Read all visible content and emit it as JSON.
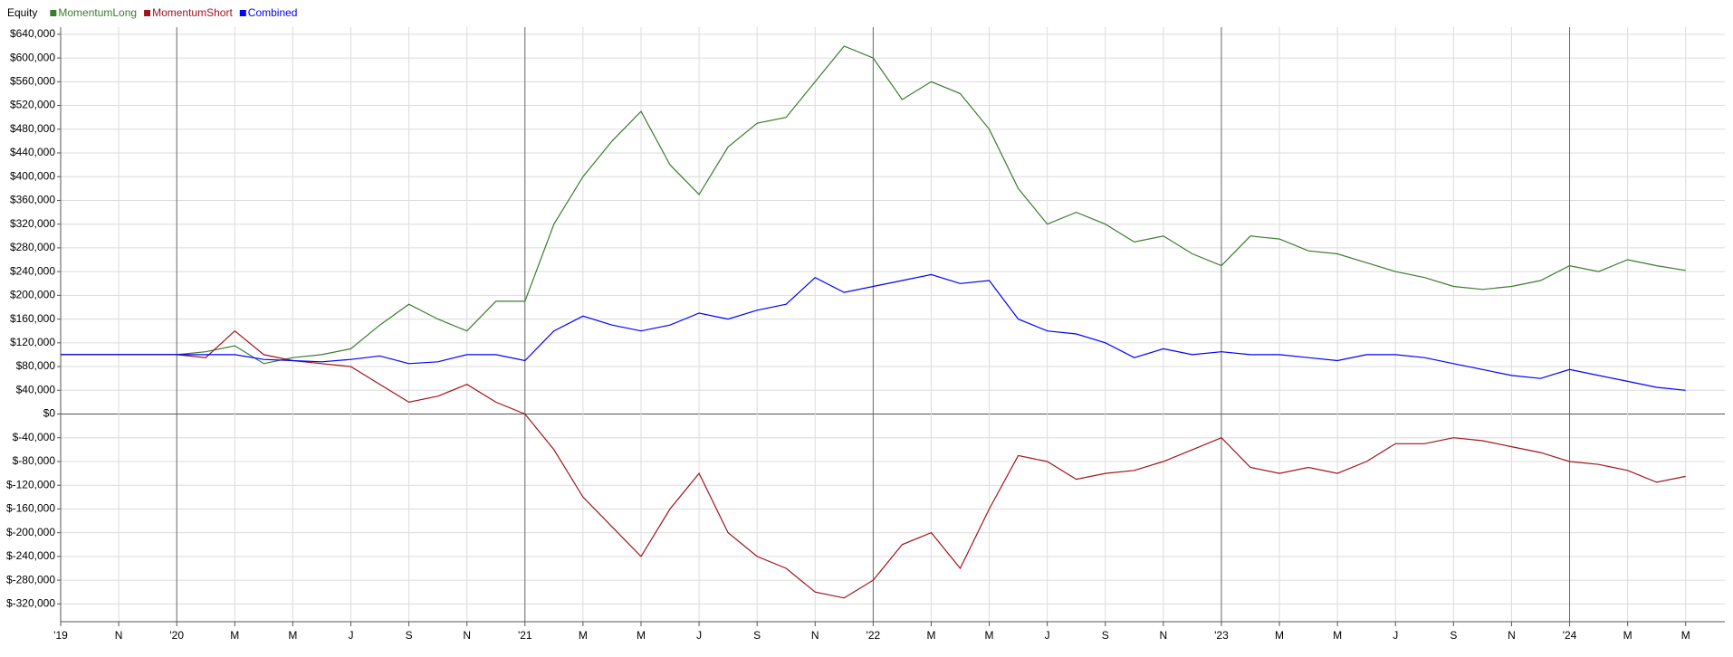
{
  "chart_data": {
    "type": "line",
    "legend_title": "Equity",
    "categories": [
      "'19",
      null,
      "N",
      null,
      "'20",
      null,
      "M",
      null,
      "M",
      null,
      "J",
      null,
      "S",
      null,
      "N",
      null,
      "'21",
      null,
      "M",
      null,
      "M",
      null,
      "J",
      null,
      "S",
      null,
      "N",
      null,
      "'22",
      null,
      "M",
      null,
      "M",
      null,
      "J",
      null,
      "S",
      null,
      "N",
      null,
      "'23",
      null,
      "M",
      null,
      "M",
      null,
      "J",
      null,
      "S",
      null,
      "N",
      null,
      "'24",
      null,
      "M",
      null,
      "M",
      null
    ],
    "series": [
      {
        "name": "MomentumLong",
        "color": "#3a7d2c",
        "values": [
          100000,
          100000,
          100000,
          100000,
          100000,
          105000,
          115000,
          85000,
          95000,
          100000,
          110000,
          150000,
          185000,
          160000,
          140000,
          190000,
          190000,
          320000,
          400000,
          460000,
          510000,
          420000,
          370000,
          450000,
          490000,
          500000,
          560000,
          620000,
          600000,
          530000,
          560000,
          540000,
          480000,
          380000,
          320000,
          340000,
          320000,
          290000,
          300000,
          270000,
          250000,
          300000,
          295000,
          275000,
          270000,
          255000,
          240000,
          230000,
          215000,
          210000,
          215000,
          225000,
          250000,
          240000,
          260000,
          250000,
          242000,
          null
        ]
      },
      {
        "name": "MomentumShort",
        "color": "#a0141e",
        "values": [
          100000,
          100000,
          100000,
          100000,
          100000,
          95000,
          140000,
          100000,
          90000,
          85000,
          80000,
          50000,
          20000,
          30000,
          50000,
          20000,
          0,
          -60000,
          -140000,
          -190000,
          -240000,
          -160000,
          -100000,
          -200000,
          -240000,
          -260000,
          -300000,
          -310000,
          -280000,
          -220000,
          -200000,
          -260000,
          -160000,
          -70000,
          -80000,
          -110000,
          -100000,
          -95000,
          -80000,
          -60000,
          -40000,
          -90000,
          -100000,
          -90000,
          -100000,
          -80000,
          -50000,
          -50000,
          -40000,
          -45000,
          -55000,
          -65000,
          -80000,
          -85000,
          -95000,
          -115000,
          -105000,
          null
        ]
      },
      {
        "name": "Combined",
        "color": "#0000ff",
        "values": [
          100000,
          100000,
          100000,
          100000,
          100000,
          100000,
          100000,
          92000,
          90000,
          88000,
          92000,
          98000,
          85000,
          88000,
          100000,
          100000,
          90000,
          140000,
          165000,
          150000,
          140000,
          150000,
          170000,
          160000,
          175000,
          185000,
          230000,
          205000,
          215000,
          225000,
          235000,
          220000,
          225000,
          160000,
          140000,
          135000,
          120000,
          95000,
          110000,
          100000,
          105000,
          100000,
          100000,
          95000,
          90000,
          100000,
          100000,
          95000,
          85000,
          75000,
          65000,
          60000,
          75000,
          65000,
          55000,
          45000,
          40000,
          null
        ]
      }
    ],
    "ylim": [
      -350000,
      652000
    ],
    "yticks": [
      {
        "value": -320000,
        "label": "$-320,000"
      },
      {
        "value": -280000,
        "label": "$-280,000"
      },
      {
        "value": -240000,
        "label": "$-240,000"
      },
      {
        "value": -200000,
        "label": "$-200,000"
      },
      {
        "value": -160000,
        "label": "$-160,000"
      },
      {
        "value": -120000,
        "label": "$-120,000"
      },
      {
        "value": -80000,
        "label": "$-80,000"
      },
      {
        "value": -40000,
        "label": "$-40,000"
      },
      {
        "value": 0,
        "label": "$0"
      },
      {
        "value": 40000,
        "label": "$40,000"
      },
      {
        "value": 80000,
        "label": "$80,000"
      },
      {
        "value": 120000,
        "label": "$120,000"
      },
      {
        "value": 160000,
        "label": "$160,000"
      },
      {
        "value": 200000,
        "label": "$200,000"
      },
      {
        "value": 240000,
        "label": "$240,000"
      },
      {
        "value": 280000,
        "label": "$280,000"
      },
      {
        "value": 320000,
        "label": "$320,000"
      },
      {
        "value": 360000,
        "label": "$360,000"
      },
      {
        "value": 400000,
        "label": "$400,000"
      },
      {
        "value": 440000,
        "label": "$440,000"
      },
      {
        "value": 480000,
        "label": "$480,000"
      },
      {
        "value": 520000,
        "label": "$520,000"
      },
      {
        "value": 560000,
        "label": "$560,000"
      },
      {
        "value": 600000,
        "label": "$600,000"
      },
      {
        "value": 640000,
        "label": "$640,000"
      }
    ],
    "grid": true
  }
}
